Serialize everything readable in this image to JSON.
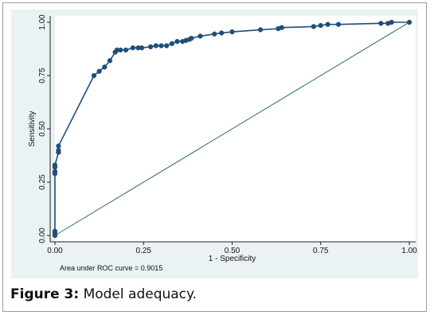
{
  "chart_data": {
    "type": "line",
    "title": "",
    "xlabel": "1 - Specificity",
    "ylabel": "Sensitivity",
    "xlim": [
      0,
      1
    ],
    "ylim": [
      0,
      1
    ],
    "xticks": [
      "0.00",
      "0.25",
      "0.50",
      "0.75",
      "1.00"
    ],
    "yticks": [
      "0.00",
      "0.25",
      "0.50",
      "0.75",
      "1.00"
    ],
    "grid": false,
    "legend": "none",
    "series_color": "#1f4e79",
    "reference_color": "#2e6e5e",
    "series": [
      {
        "values": [
          [
            0.0,
            0.0
          ],
          [
            0.0,
            0.01
          ],
          [
            0.0,
            0.02
          ],
          [
            0.0,
            0.29
          ],
          [
            0.0,
            0.3
          ],
          [
            0.0,
            0.32
          ],
          [
            0.0,
            0.33
          ],
          [
            0.01,
            0.39
          ],
          [
            0.01,
            0.4
          ],
          [
            0.01,
            0.42
          ],
          [
            0.11,
            0.75
          ],
          [
            0.125,
            0.77
          ],
          [
            0.14,
            0.79
          ],
          [
            0.155,
            0.82
          ],
          [
            0.17,
            0.86
          ],
          [
            0.175,
            0.87
          ],
          [
            0.185,
            0.87
          ],
          [
            0.2,
            0.87
          ],
          [
            0.22,
            0.88
          ],
          [
            0.235,
            0.88
          ],
          [
            0.245,
            0.88
          ],
          [
            0.27,
            0.885
          ],
          [
            0.285,
            0.89
          ],
          [
            0.3,
            0.89
          ],
          [
            0.315,
            0.89
          ],
          [
            0.33,
            0.9
          ],
          [
            0.345,
            0.91
          ],
          [
            0.36,
            0.91
          ],
          [
            0.37,
            0.915
          ],
          [
            0.38,
            0.92
          ],
          [
            0.385,
            0.925
          ],
          [
            0.41,
            0.935
          ],
          [
            0.45,
            0.945
          ],
          [
            0.47,
            0.95
          ],
          [
            0.5,
            0.955
          ],
          [
            0.58,
            0.965
          ],
          [
            0.63,
            0.97
          ],
          [
            0.64,
            0.975
          ],
          [
            0.73,
            0.98
          ],
          [
            0.75,
            0.985
          ],
          [
            0.77,
            0.99
          ],
          [
            0.8,
            0.99
          ],
          [
            0.92,
            0.995
          ],
          [
            0.94,
            0.995
          ],
          [
            0.95,
            1.0
          ],
          [
            1.0,
            1.0
          ]
        ]
      }
    ],
    "reference_line": [
      [
        0,
        0
      ],
      [
        1,
        1
      ]
    ],
    "annotation": "Area under ROC curve = 0.9015"
  },
  "caption": {
    "label": "Figure 3:",
    "text": " Model adequacy."
  }
}
